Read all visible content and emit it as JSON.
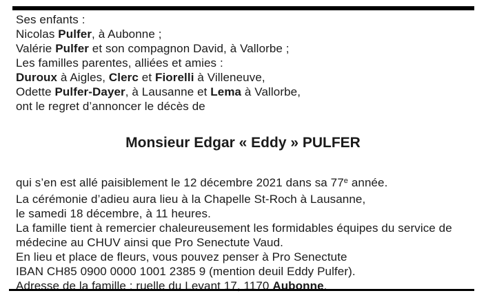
{
  "page": {
    "background": "#ffffff",
    "text_color": "#1a1a1a",
    "rule_color": "#000000"
  },
  "notice": {
    "title": "Monsieur Edgar « Eddy » PULFER",
    "intro_lines": [
      {
        "segments": [
          {
            "text": "Ses enfants :"
          }
        ]
      },
      {
        "segments": [
          {
            "text": "Nicolas "
          },
          {
            "text": "Pulfer",
            "bold": true
          },
          {
            "text": ", à Aubonne ;"
          }
        ]
      },
      {
        "segments": [
          {
            "text": "Valérie "
          },
          {
            "text": "Pulfer",
            "bold": true
          },
          {
            "text": " et son compagnon David, à Vallorbe ;"
          }
        ]
      },
      {
        "segments": [
          {
            "text": "Les familles parentes, alliées et amies :"
          }
        ]
      },
      {
        "segments": [
          {
            "text": "Duroux",
            "bold": true
          },
          {
            "text": " à Aigles, "
          },
          {
            "text": "Clerc",
            "bold": true
          },
          {
            "text": " et "
          },
          {
            "text": "Fiorelli",
            "bold": true
          },
          {
            "text": " à Villeneuve,"
          }
        ]
      },
      {
        "segments": [
          {
            "text": "Odette "
          },
          {
            "text": "Pulfer-Dayer",
            "bold": true
          },
          {
            "text": ", à Lausanne et "
          },
          {
            "text": "Lema",
            "bold": true
          },
          {
            "text": " à Vallorbe,"
          }
        ]
      },
      {
        "segments": [
          {
            "text": "ont le regret d’annoncer le décès de"
          }
        ]
      }
    ],
    "detail_lines": [
      {
        "segments": [
          {
            "text": "qui s’en est allé paisiblement le 12 décembre 2021 dans sa 77"
          },
          {
            "text": "e",
            "sup": true
          },
          {
            "text": " année."
          }
        ]
      },
      {
        "segments": [
          {
            "text": "La cérémonie d’adieu aura lieu à la Chapelle St-Roch à Lausanne,"
          }
        ]
      },
      {
        "segments": [
          {
            "text": "le samedi 18 décembre, à 11 heures."
          }
        ]
      },
      {
        "segments": [
          {
            "text": "La famille tient à remercier chaleureusement les formidables équipes du service de"
          }
        ]
      },
      {
        "segments": [
          {
            "text": "médecine au CHUV ainsi que Pro Senectute Vaud."
          }
        ]
      },
      {
        "segments": [
          {
            "text": "En lieu et place de fleurs, vous pouvez penser à Pro Senectute"
          }
        ]
      },
      {
        "segments": [
          {
            "text": "IBAN CH85 0900 0000 1001 2385 9 (mention deuil Eddy Pulfer)."
          }
        ]
      },
      {
        "segments": [
          {
            "text": "Adresse de la famille : ruelle du Levant 17, 1170 "
          },
          {
            "text": "Aubonne",
            "bold": true
          },
          {
            "text": "."
          }
        ]
      }
    ]
  }
}
